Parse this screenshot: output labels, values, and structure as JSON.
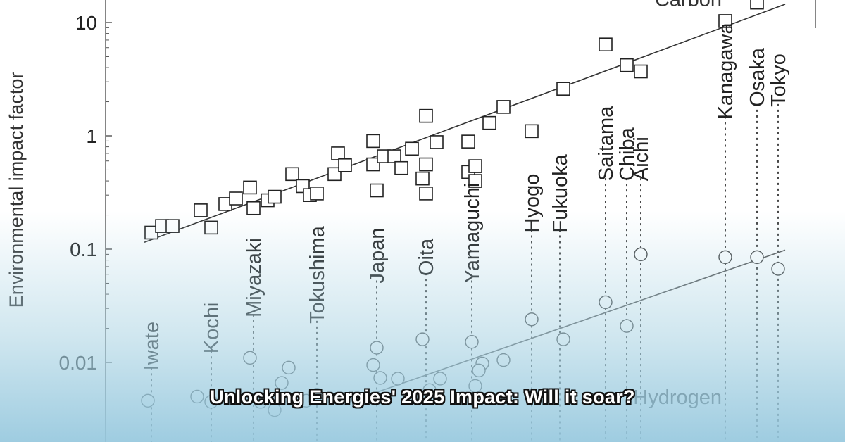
{
  "chart_data": {
    "type": "scatter",
    "ylabel": "Environmental impact factor",
    "yscale": "log",
    "yticks": [
      {
        "value": 0.01,
        "label": "0.01"
      },
      {
        "value": 0.1,
        "label": "0.1"
      },
      {
        "value": 1,
        "label": "1"
      },
      {
        "value": 10,
        "label": "10"
      }
    ],
    "series_labels": [
      {
        "name": "Carbon",
        "at": [
          17.5,
          14
        ]
      },
      {
        "name": "Hydrogen",
        "at": [
          17.5,
          0.0043
        ]
      }
    ],
    "prefectures": [
      {
        "name": "Iwate",
        "x": 1.3,
        "label_y": 0.0085
      },
      {
        "name": "Kochi",
        "x": 3.0,
        "label_y": 0.012
      },
      {
        "name": "Miyazaki",
        "x": 4.2,
        "label_y": 0.025
      },
      {
        "name": "Tokushima",
        "x": 6.0,
        "label_y": 0.022
      },
      {
        "name": "Japan",
        "x": 7.7,
        "label_y": 0.05
      },
      {
        "name": "Oita",
        "x": 9.1,
        "label_y": 0.058
      },
      {
        "name": "Yamaguchi",
        "x": 10.4,
        "label_y": 0.05
      },
      {
        "name": "Hyogo",
        "x": 12.1,
        "label_y": 0.14
      },
      {
        "name": "Fukuoka",
        "x": 12.9,
        "label_y": 0.14
      },
      {
        "name": "Saitama",
        "x": 14.2,
        "label_y": 0.4
      },
      {
        "name": "Chiba",
        "x": 14.8,
        "label_y": 0.4
      },
      {
        "name": "Aichi",
        "x": 15.2,
        "label_y": 0.4
      },
      {
        "name": "Kanagawa",
        "x": 17.6,
        "label_y": 1.4
      },
      {
        "name": "Osaka",
        "x": 18.5,
        "label_y": 1.8
      },
      {
        "name": "Tokyo",
        "x": 19.1,
        "label_y": 1.8
      }
    ],
    "series": [
      {
        "name": "Carbon",
        "marker": "square",
        "points": [
          [
            1.3,
            0.14
          ],
          [
            1.6,
            0.16
          ],
          [
            1.9,
            0.16
          ],
          [
            2.7,
            0.22
          ],
          [
            3.0,
            0.155
          ],
          [
            3.4,
            0.25
          ],
          [
            3.7,
            0.28
          ],
          [
            4.1,
            0.35
          ],
          [
            4.2,
            0.23
          ],
          [
            4.6,
            0.27
          ],
          [
            4.8,
            0.29
          ],
          [
            5.3,
            0.46
          ],
          [
            5.6,
            0.36
          ],
          [
            5.8,
            0.3
          ],
          [
            6.0,
            0.31
          ],
          [
            6.5,
            0.46
          ],
          [
            6.6,
            0.7
          ],
          [
            6.8,
            0.55
          ],
          [
            7.6,
            0.56
          ],
          [
            7.6,
            0.9
          ],
          [
            7.7,
            0.33
          ],
          [
            7.9,
            0.66
          ],
          [
            8.2,
            0.66
          ],
          [
            8.4,
            0.52
          ],
          [
            8.7,
            0.77
          ],
          [
            9.0,
            0.42
          ],
          [
            9.1,
            0.56
          ],
          [
            9.1,
            1.5
          ],
          [
            9.1,
            0.31
          ],
          [
            9.4,
            0.88
          ],
          [
            10.3,
            0.89
          ],
          [
            10.3,
            0.48
          ],
          [
            10.5,
            0.54
          ],
          [
            10.5,
            0.4
          ],
          [
            10.9,
            1.3
          ],
          [
            11.3,
            1.8
          ],
          [
            12.1,
            1.1
          ],
          [
            13.0,
            2.6
          ],
          [
            14.2,
            6.4
          ],
          [
            14.8,
            4.2
          ],
          [
            15.2,
            3.7
          ],
          [
            17.6,
            10.3
          ],
          [
            18.5,
            15.0
          ]
        ],
        "trend": [
          [
            1.1,
            0.115
          ],
          [
            19.3,
            14.5
          ]
        ]
      },
      {
        "name": "Hydrogen",
        "marker": "circle",
        "points": [
          [
            1.2,
            0.0046
          ],
          [
            2.6,
            0.005
          ],
          [
            3.0,
            0.0045
          ],
          [
            4.1,
            0.011
          ],
          [
            4.4,
            0.0045
          ],
          [
            4.8,
            0.0038
          ],
          [
            5.0,
            0.0066
          ],
          [
            5.2,
            0.009
          ],
          [
            5.7,
            0.0046
          ],
          [
            6.0,
            0.0052
          ],
          [
            7.7,
            0.0135
          ],
          [
            7.6,
            0.0095
          ],
          [
            7.8,
            0.0073
          ],
          [
            8.3,
            0.0072
          ],
          [
            9.0,
            0.016
          ],
          [
            9.2,
            0.0057
          ],
          [
            9.5,
            0.0072
          ],
          [
            10.4,
            0.0152
          ],
          [
            10.5,
            0.0062
          ],
          [
            10.7,
            0.0098
          ],
          [
            10.6,
            0.0085
          ],
          [
            11.3,
            0.0105
          ],
          [
            12.1,
            0.024
          ],
          [
            13.0,
            0.016
          ],
          [
            14.2,
            0.034
          ],
          [
            14.8,
            0.021
          ],
          [
            15.2,
            0.09
          ],
          [
            17.6,
            0.085
          ],
          [
            18.5,
            0.085
          ],
          [
            19.1,
            0.067
          ]
        ],
        "trend": [
          [
            7.5,
            0.0052
          ],
          [
            19.3,
            0.098
          ]
        ]
      }
    ]
  },
  "headline": "Unlocking Energies' 2025 Impact: Will it soar?"
}
